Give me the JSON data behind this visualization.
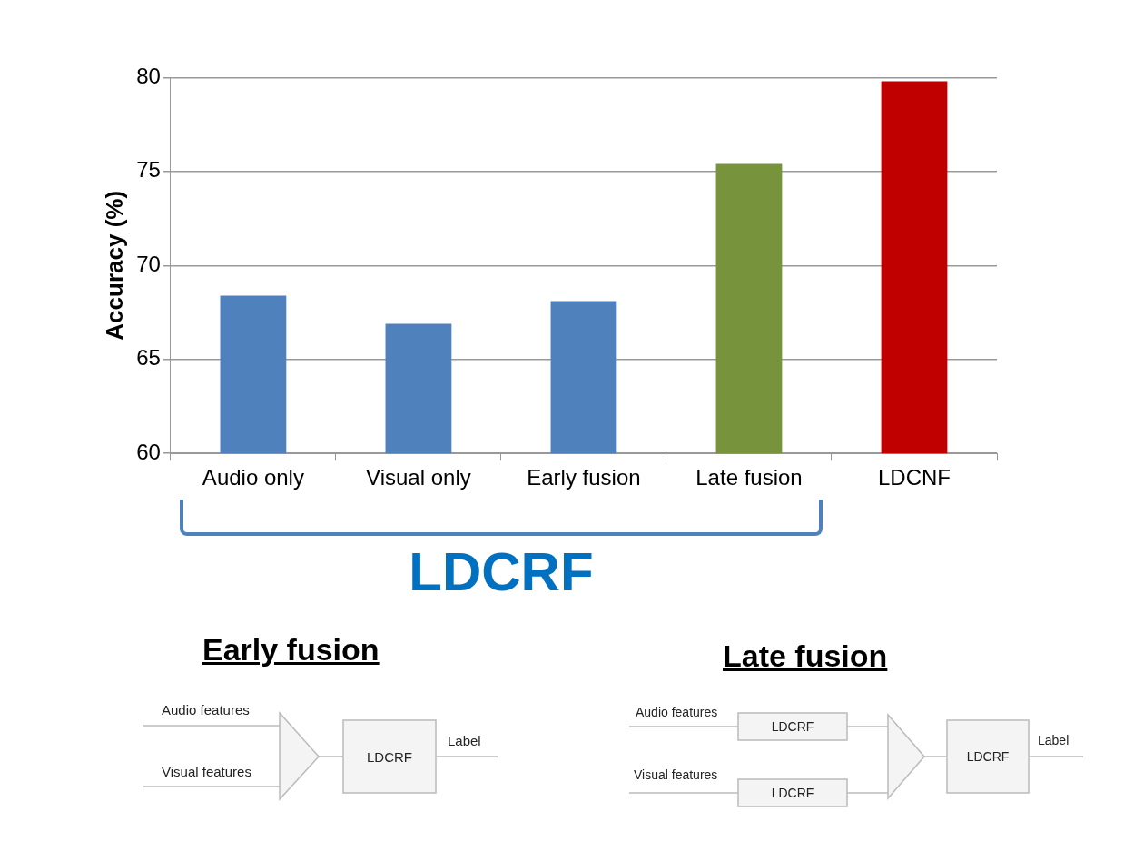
{
  "chart_data": {
    "type": "bar",
    "ylabel": "Accuracy (%)",
    "categories": [
      "Audio only",
      "Visual only",
      "Early fusion",
      "Late fusion",
      "LDCNF"
    ],
    "values": [
      68.4,
      66.9,
      68.1,
      75.4,
      79.8
    ],
    "colors": [
      "#4f81bd",
      "#4f81bd",
      "#4f81bd",
      "#77933c",
      "#c00000"
    ],
    "ylim": [
      60,
      80
    ],
    "yticks": [
      60,
      65,
      70,
      75,
      80
    ],
    "grid": "y",
    "legend": false,
    "annotations": [
      "LDCRF",
      "Early fusion",
      "Late fusion",
      "Audio features",
      "Visual features",
      "LDCRF",
      "Label"
    ]
  }
}
